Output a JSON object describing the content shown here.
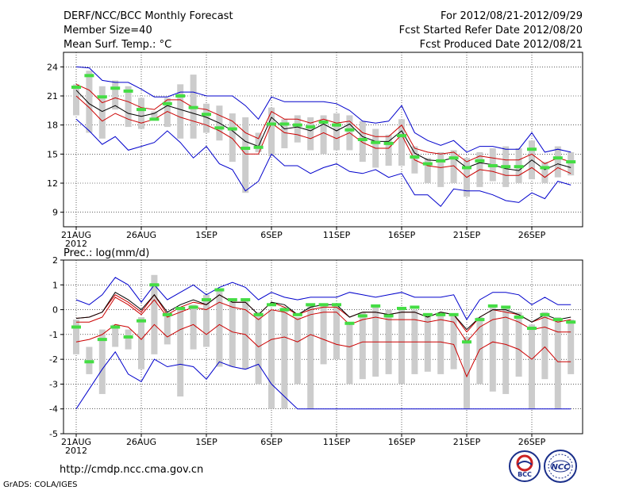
{
  "header": {
    "title": "DERF/NCC/BCC Monthly Forecast",
    "member_size": "Member Size=40",
    "variable": "Mean Surf. Temp.: °C",
    "forecast_period": "For 2012/08/21-2012/09/29",
    "started_date": "Fcst Started Refer Date 2012/08/20",
    "produced_date": "Fcst Produced Date 2012/08/21"
  },
  "footer": {
    "url": "http://cmdp.ncc.cma.gov.cn",
    "grads": "GrADS: COLA/IGES",
    "logo_bcc": "BCC",
    "logo_ncc": "NCC"
  },
  "colors": {
    "max_min": "#0000cc",
    "quartile": "#cc0000",
    "mean": "#000000",
    "box": "#cccccc",
    "marker": "#44dd44"
  },
  "chart_data": [
    {
      "type": "line",
      "title": "Mean Surf. Temp.: °C",
      "x_labels": [
        "21AUG",
        "26AUG",
        "1SEP",
        "6SEP",
        "11SEP",
        "16SEP",
        "21SEP",
        "26SEP"
      ],
      "x_label_days": [
        0,
        5,
        10,
        15,
        20,
        25,
        30,
        35
      ],
      "year_label": "2012",
      "ylim": [
        7.5,
        25.5
      ],
      "yticks": [
        9,
        12,
        15,
        18,
        21,
        24
      ],
      "series": {
        "max": [
          24,
          23.9,
          22.6,
          22.4,
          22.4,
          21.7,
          20.9,
          20.9,
          21.4,
          21.4,
          21,
          21,
          21,
          20,
          18.6,
          20.9,
          20.4,
          20.4,
          20.4,
          20.4,
          20.2,
          19.5,
          18.4,
          18.2,
          18.4,
          20,
          17.2,
          16.4,
          15.9,
          16.4,
          15.2,
          15.8,
          15.8,
          15.5,
          15.5,
          17.2,
          15.2,
          15.5,
          15.2
        ],
        "q3": [
          22.2,
          21.6,
          20.3,
          20.8,
          20.4,
          19.8,
          19.6,
          20.6,
          20.6,
          19.8,
          19.6,
          19.0,
          18.4,
          17.2,
          16.6,
          19.4,
          18.6,
          18.6,
          18.2,
          18.6,
          18.2,
          18.4,
          17.2,
          16.8,
          16.8,
          18.0,
          15.6,
          15.2,
          15.0,
          15.2,
          14.2,
          14.8,
          14.6,
          14.4,
          14.4,
          15.0,
          14.0,
          14.6,
          14.2
        ],
        "mean": [
          21.6,
          20.2,
          19.4,
          20.0,
          19.2,
          18.9,
          19.2,
          20.0,
          19.6,
          19.2,
          18.8,
          18.2,
          17.4,
          16.3,
          15.8,
          18.8,
          17.6,
          17.8,
          17.4,
          18.1,
          17.4,
          18.1,
          16.8,
          16.3,
          16.3,
          17.4,
          15.1,
          14.4,
          14.3,
          14.6,
          13.6,
          14.1,
          13.9,
          13.5,
          13.3,
          14.4,
          13.4,
          14.0,
          13.6
        ],
        "q1": [
          21.0,
          19.8,
          18.4,
          19.2,
          18.6,
          18.2,
          18.6,
          19.4,
          18.8,
          18.4,
          18.0,
          17.4,
          16.6,
          15.0,
          15.0,
          18.2,
          17.2,
          17.0,
          16.6,
          17.2,
          16.6,
          17.2,
          16.2,
          15.6,
          15.6,
          17.0,
          14.4,
          13.8,
          13.6,
          13.8,
          12.6,
          13.4,
          13.2,
          12.8,
          12.8,
          13.6,
          12.6,
          13.6,
          13.0
        ],
        "min": [
          18.6,
          17.4,
          16.0,
          16.8,
          15.4,
          15.8,
          16.2,
          17.4,
          16.2,
          14.6,
          15.8,
          14.0,
          13.4,
          11.2,
          12.2,
          15.0,
          13.8,
          13.8,
          13.0,
          13.6,
          14.0,
          13.2,
          13.0,
          13.4,
          12.6,
          13.0,
          10.8,
          10.8,
          9.6,
          11.4,
          11.2,
          11.2,
          10.8,
          10.2,
          10.0,
          11.0,
          10.4,
          12.2,
          11.8
        ],
        "box_top": [
          22.2,
          23.6,
          22.0,
          22.6,
          22.0,
          20.8,
          19.4,
          20.8,
          22.2,
          23.2,
          20.2,
          20.0,
          19.2,
          18.8,
          17.2,
          19.8,
          18.6,
          19.0,
          18.8,
          19.0,
          19.2,
          19.0,
          18.4,
          17.6,
          17.0,
          18.6,
          15.8,
          14.6,
          15.2,
          15.4,
          14.6,
          15.2,
          15.6,
          15.8,
          15.6,
          16.4,
          14.2,
          15.8,
          15.2
        ],
        "box_bottom": [
          19.0,
          17.2,
          16.6,
          19.6,
          17.8,
          17.6,
          18.6,
          17.8,
          16.6,
          16.6,
          17.2,
          16.4,
          14.2,
          11.0,
          15.2,
          14.8,
          15.6,
          16.2,
          15.4,
          15.0,
          15.4,
          15.4,
          14.2,
          13.6,
          13.8,
          13.8,
          13.0,
          12.0,
          11.6,
          12.0,
          10.6,
          11.6,
          12.2,
          11.6,
          12.0,
          12.4,
          12.0,
          12.6,
          12.8
        ],
        "marker": [
          21.9,
          23.1,
          20.9,
          21.8,
          21.5,
          19.6,
          18.6,
          20.2,
          21.0,
          19.8,
          19.1,
          17.7,
          17.6,
          15.6,
          15.7,
          18.1,
          18.1,
          18.0,
          17.8,
          18.3,
          18.0,
          17.5,
          16.5,
          16.2,
          16.1,
          16.9,
          14.7,
          14.0,
          14.3,
          14.6,
          13.6,
          14.3,
          13.8,
          13.7,
          13.7,
          15.5,
          13.6,
          14.6,
          14.2
        ]
      }
    },
    {
      "type": "line",
      "title": "Prec.: log(mm/d)",
      "x_labels": [
        "21AUG",
        "26AUG",
        "1SEP",
        "6SEP",
        "11SEP",
        "16SEP",
        "21SEP",
        "26SEP"
      ],
      "x_label_days": [
        0,
        5,
        10,
        15,
        20,
        25,
        30,
        35
      ],
      "year_label": "2012",
      "ylim": [
        -5,
        2
      ],
      "yticks": [
        -5,
        -4,
        -3,
        -2,
        -1,
        0,
        1,
        2
      ],
      "series": {
        "max": [
          0.4,
          0.2,
          0.6,
          1.3,
          1.0,
          0.3,
          1.0,
          0.4,
          0.7,
          1.0,
          0.6,
          0.9,
          1.1,
          0.9,
          0.4,
          0.7,
          0.5,
          0.4,
          0.5,
          0.5,
          0.5,
          0.7,
          0.6,
          0.5,
          0.6,
          0.7,
          0.5,
          0.5,
          0.5,
          0.6,
          -0.4,
          0.4,
          0.7,
          0.7,
          0.6,
          0.2,
          0.5,
          0.2,
          0.2
        ],
        "mean": [
          -0.35,
          -0.3,
          -0.1,
          0.7,
          0.4,
          0.0,
          0.6,
          -0.1,
          0.2,
          0.4,
          0.2,
          0.6,
          0.3,
          0.3,
          -0.2,
          0.3,
          0.2,
          -0.2,
          0.1,
          0.2,
          0.2,
          -0.3,
          -0.1,
          -0.1,
          -0.2,
          -0.1,
          -0.1,
          -0.3,
          -0.1,
          -0.2,
          -0.8,
          -0.3,
          0.0,
          0.0,
          -0.2,
          -0.5,
          -0.2,
          -0.4,
          -0.3
        ],
        "median": [
          -0.35,
          -0.3,
          -0.1,
          0.6,
          0.3,
          -0.1,
          0.6,
          -0.2,
          0.1,
          0.3,
          0.2,
          0.6,
          0.3,
          0.3,
          -0.2,
          0.3,
          0.1,
          -0.2,
          0.0,
          0.1,
          0.1,
          -0.3,
          -0.1,
          -0.1,
          -0.2,
          -0.1,
          -0.1,
          -0.3,
          -0.1,
          -0.2,
          -0.9,
          -0.3,
          0.0,
          -0.1,
          -0.2,
          -0.5,
          -0.3,
          -0.5,
          -0.4
        ],
        "q3": [
          -0.5,
          -0.5,
          -0.3,
          0.5,
          0.2,
          -0.2,
          0.4,
          -0.3,
          -0.1,
          0.1,
          0.0,
          0.3,
          0.1,
          0.0,
          -0.4,
          0.0,
          -0.1,
          -0.4,
          -0.2,
          -0.1,
          -0.1,
          -0.6,
          -0.4,
          -0.3,
          -0.4,
          -0.4,
          -0.4,
          -0.5,
          -0.4,
          -0.5,
          -1.3,
          -0.7,
          -0.4,
          -0.3,
          -0.5,
          -0.8,
          -0.7,
          -0.9,
          -0.9
        ],
        "q1": [
          -1.3,
          -1.2,
          -1.0,
          -0.6,
          -0.7,
          -1.2,
          -0.6,
          -1.1,
          -0.8,
          -0.6,
          -1.0,
          -0.6,
          -0.9,
          -1.0,
          -1.5,
          -1.2,
          -1.1,
          -1.3,
          -1.0,
          -1.2,
          -1.4,
          -1.5,
          -1.3,
          -1.3,
          -1.3,
          -1.3,
          -1.3,
          -1.3,
          -1.3,
          -1.4,
          -2.7,
          -1.6,
          -1.3,
          -1.4,
          -1.6,
          -2.0,
          -1.5,
          -2.1,
          -2.1
        ],
        "min": [
          -4.0,
          -3.2,
          -2.4,
          -1.7,
          -2.6,
          -2.9,
          -2.0,
          -2.3,
          -2.2,
          -2.3,
          -2.8,
          -2.1,
          -2.3,
          -2.4,
          -2.2,
          -3.0,
          -3.5,
          -4.0,
          -4.0,
          -4.0,
          -4.0,
          -4.0,
          -4.0,
          -4.0,
          -4.0,
          -4.0,
          -4.0,
          -4.0,
          -4.0,
          -4.0,
          -4.0,
          -4.0,
          -4.0,
          -4.0,
          -4.0,
          -4.0,
          -4.0,
          -4.0,
          -4.0
        ],
        "box_top": [
          -0.4,
          -1.5,
          -0.8,
          -0.6,
          -0.8,
          -0.3,
          1.4,
          -0.1,
          0.1,
          0.2,
          0.6,
          0.8,
          0.4,
          0.4,
          -0.1,
          0.0,
          0.1,
          -0.3,
          0.2,
          0.2,
          0.2,
          -0.5,
          -0.1,
          0.2,
          0.0,
          0.1,
          0.0,
          -0.2,
          -0.2,
          -0.2,
          -1.1,
          -0.3,
          0.2,
          0.1,
          -0.1,
          -0.6,
          -0.1,
          -0.3,
          -0.4
        ],
        "box_bottom": [
          -1.8,
          -2.6,
          -3.4,
          -1.5,
          -1.6,
          -2.4,
          -1.8,
          -1.4,
          -3.5,
          -1.6,
          -1.5,
          -2.3,
          -2.3,
          -2.4,
          -3.0,
          -4.0,
          -4.0,
          -3.0,
          -4.0,
          -2.2,
          -2.0,
          -3.0,
          -2.8,
          -2.7,
          -2.6,
          -3.0,
          -2.6,
          -2.5,
          -2.6,
          -2.4,
          -4.0,
          -3.0,
          -3.3,
          -3.4,
          -2.7,
          -4.0,
          -2.8,
          -4.0,
          -2.6
        ],
        "marker": [
          -0.7,
          -2.1,
          -1.2,
          -0.7,
          -1.1,
          -0.45,
          1.0,
          -0.2,
          0.05,
          0.1,
          0.4,
          0.8,
          0.4,
          0.4,
          -0.2,
          0.2,
          0.0,
          -0.2,
          0.2,
          0.2,
          0.2,
          -0.55,
          -0.25,
          0.15,
          -0.25,
          0.05,
          0.1,
          -0.2,
          -0.2,
          -0.2,
          -1.3,
          -0.4,
          0.15,
          0.1,
          -0.3,
          -0.75,
          -0.2,
          -0.4,
          -0.5
        ]
      }
    }
  ]
}
